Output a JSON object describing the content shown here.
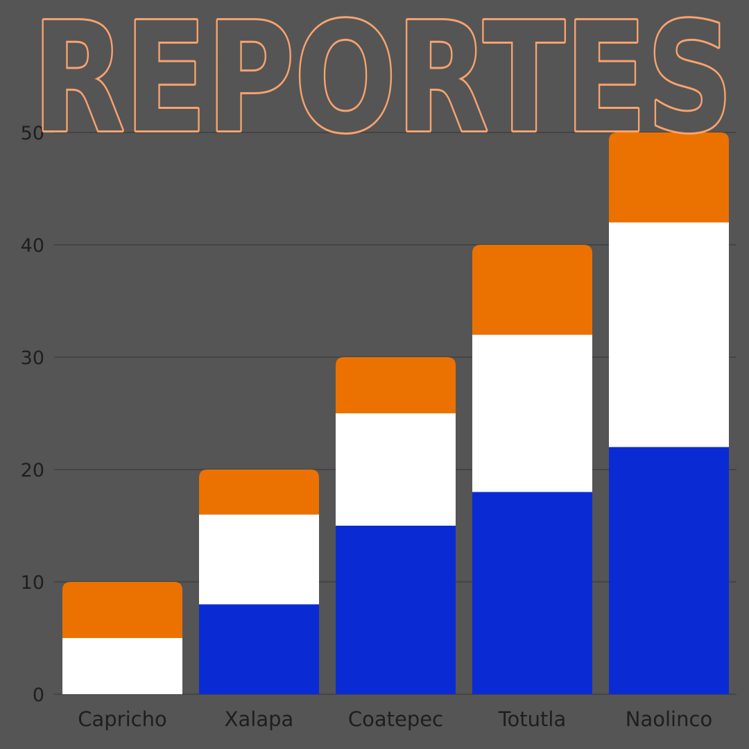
{
  "chart_data": {
    "type": "bar",
    "stacked": true,
    "title": "REPORTES",
    "categories": [
      "Capricho",
      "Xalapa",
      "Coatepec",
      "Totutla",
      "Naolinco"
    ],
    "series": [
      {
        "values": [
          0,
          8,
          15,
          18,
          22
        ],
        "color": "#0a2bd4"
      },
      {
        "values": [
          5,
          8,
          10,
          14,
          20
        ],
        "color": "#ffffff"
      },
      {
        "values": [
          5,
          4,
          5,
          8,
          8
        ],
        "color": "#eb7200"
      }
    ],
    "ylim": [
      0,
      50
    ],
    "yticks": [
      "0",
      "10",
      "20",
      "30",
      "40",
      "50"
    ],
    "grid": true,
    "legend": "none"
  },
  "colors": {
    "background": "#555555",
    "title_outline": "#f8a36e",
    "gridline": "#444444",
    "text": "#1e1e1e"
  }
}
